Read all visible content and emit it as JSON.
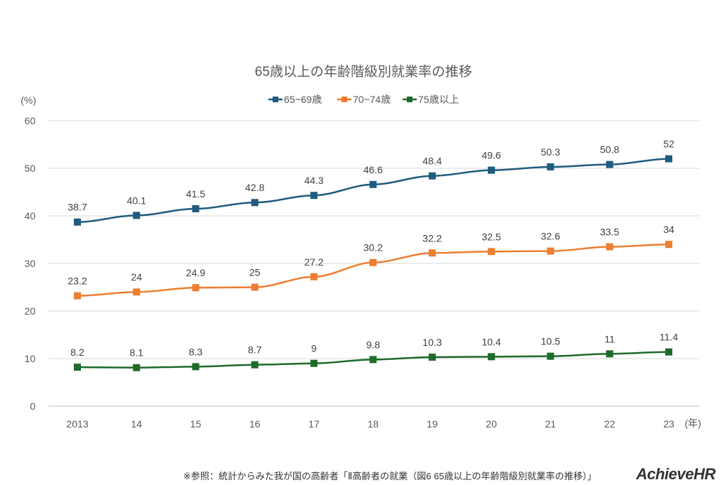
{
  "chart_data": {
    "type": "line",
    "title": "65歳以上の年齢階級別就業率の推移",
    "ylabel": "(%)",
    "xlabel": "(年)",
    "categories": [
      "2013",
      "14",
      "15",
      "16",
      "17",
      "18",
      "19",
      "20",
      "21",
      "22",
      "23"
    ],
    "ylim": [
      0,
      60
    ],
    "yticks": [
      "0",
      "10",
      "20",
      "30",
      "40",
      "50",
      "60"
    ],
    "grid": true,
    "legend_position": "top-center",
    "series": [
      {
        "name": "65~69歳",
        "color": "#1f5c7f",
        "values": [
          38.7,
          40.1,
          41.5,
          42.8,
          44.3,
          46.6,
          48.4,
          49.6,
          50.3,
          50.8,
          52
        ]
      },
      {
        "name": "70~74歳",
        "color": "#ed7d31",
        "values": [
          23.2,
          24,
          24.9,
          25,
          27.2,
          30.2,
          32.2,
          32.5,
          32.6,
          33.5,
          34
        ]
      },
      {
        "name": "75歳以上",
        "color": "#1e6b2a",
        "values": [
          8.2,
          8.1,
          8.3,
          8.7,
          9,
          9.8,
          10.3,
          10.4,
          10.5,
          11,
          11.4
        ]
      }
    ]
  },
  "footer": {
    "source": "※参照：統計からみた我が国の高齢者「Ⅱ高齢者の就業（図6 65歳以上の年齢階級別就業率の推移）」",
    "logo": "AchieveHR"
  }
}
